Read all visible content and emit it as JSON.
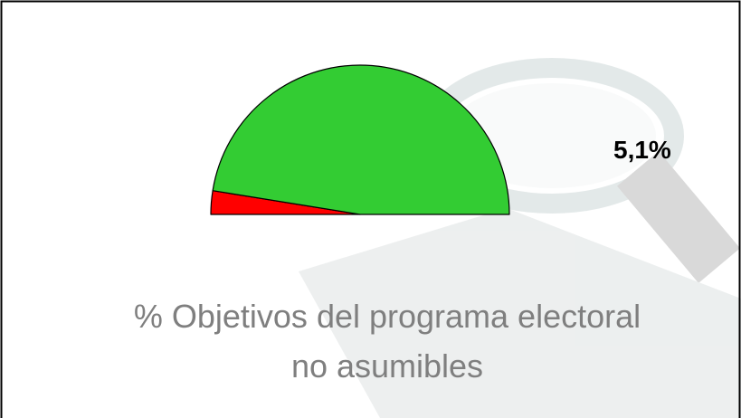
{
  "chart_data": {
    "type": "half-pie",
    "title": [
      "% Objetivos del programa electoral",
      "no asumibles"
    ],
    "values": [
      5.1,
      94.9
    ],
    "value_labels": [
      "5,1%",
      null
    ],
    "colors": [
      "#ff0000",
      "#33cc33"
    ]
  }
}
